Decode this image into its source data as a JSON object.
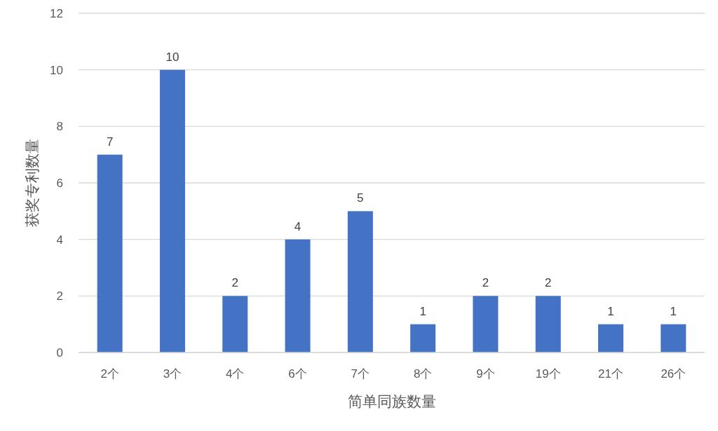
{
  "chart_data": {
    "type": "bar",
    "xlabel": "简单同族数量",
    "ylabel": "获奖专利数量",
    "categories": [
      "2个",
      "3个",
      "4个",
      "6个",
      "7个",
      "8个",
      "9个",
      "19个",
      "21个",
      "26个"
    ],
    "values": [
      7,
      10,
      2,
      4,
      5,
      1,
      2,
      2,
      1,
      1
    ],
    "color": "#4472c4",
    "ylim": [
      0,
      12
    ],
    "yticks": [
      0,
      2,
      4,
      6,
      8,
      10,
      12
    ],
    "grid": "y",
    "data_labels": true
  }
}
